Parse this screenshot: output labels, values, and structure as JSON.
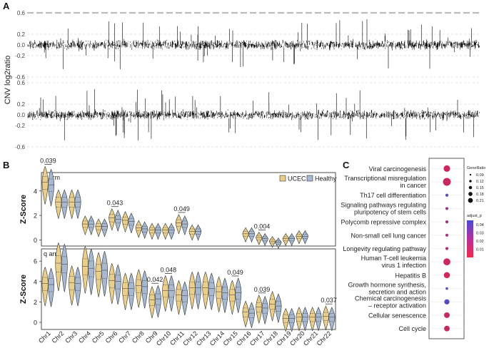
{
  "chart_data": [
    {
      "panel": "A",
      "type": "line",
      "description_type": "genome-wide CNV profile",
      "ylabel": "CNV log2ratio",
      "tracks": [
        {
          "name": "upper",
          "yticks": [
            -0.6,
            -0.2,
            0.2,
            0.6
          ],
          "ylim": [
            -0.6,
            0.6
          ]
        },
        {
          "name": "lower",
          "yticks": [
            -0.6,
            -0.2,
            0.2,
            0.6
          ],
          "ylim": [
            -0.6,
            0.6
          ]
        }
      ]
    },
    {
      "panel": "B",
      "type": "violin",
      "ylabel": "Z-Score",
      "legend": [
        "UCEC",
        "Healthy"
      ],
      "colors": {
        "UCEC": "#e9cf8b",
        "Healthy": "#a7b8cf"
      },
      "categories": [
        "Chr1",
        "Chr2",
        "Chr3",
        "Chr4",
        "Chr5",
        "Chr6",
        "Chr7",
        "Chr8",
        "Chr9",
        "Chr10",
        "Chr11",
        "Chr12",
        "Chr13",
        "Chr14",
        "Chr15",
        "Chr16",
        "Chr17",
        "Chr18",
        "Chr19",
        "Chr20",
        "Chr21",
        "Chr22"
      ],
      "subplots": [
        {
          "title": "p arm",
          "ylim": [
            -0.5,
            5.5
          ],
          "yticks": [
            0,
            2,
            4
          ],
          "medians": {
            "UCEC": [
              4.7,
              3.1,
              3.1,
              1.3,
              1.1,
              1.8,
              1.6,
              1.0,
              0.8,
              0.8,
              1.4,
              0.7,
              null,
              null,
              null,
              0.5,
              0.2,
              -0.1,
              0.1,
              0.3,
              null,
              null
            ],
            "Healthy": [
              4.5,
              3.1,
              3.1,
              1.3,
              1.1,
              1.7,
              1.5,
              0.9,
              0.8,
              0.8,
              1.3,
              0.7,
              null,
              null,
              null,
              0.5,
              0.1,
              -0.2,
              0.1,
              0.3,
              null,
              null
            ]
          },
          "pvalues": [
            {
              "chr": "Chr1",
              "p": "0.039"
            },
            {
              "chr": "Chr6",
              "p": "0.043"
            },
            {
              "chr": "Chr11",
              "p": "0.049"
            },
            {
              "chr": "Chr17",
              "p": "0.004"
            }
          ]
        },
        {
          "title": "q arm",
          "ylim": [
            -0.7,
            7.2
          ],
          "yticks": [
            0,
            2,
            4,
            6
          ],
          "medians": {
            "UCEC": [
              3.8,
              5.8,
              3.9,
              5.5,
              5.0,
              4.1,
              3.3,
              3.6,
              2.2,
              3.1,
              2.7,
              3.4,
              3.4,
              3.0,
              2.7,
              1.0,
              1.5,
              1.8,
              0.4,
              0.5,
              0.5,
              0.6
            ],
            "Healthy": [
              3.7,
              5.7,
              3.8,
              5.3,
              5.1,
              4.0,
              3.3,
              3.5,
              2.3,
              3.1,
              2.6,
              3.4,
              3.3,
              2.9,
              2.9,
              0.9,
              1.4,
              1.6,
              0.4,
              0.5,
              0.5,
              0.5
            ]
          },
          "pvalues": [
            {
              "chr": "Chr9",
              "p": "0.042"
            },
            {
              "chr": "Chr10",
              "p": "0.048"
            },
            {
              "chr": "Chr15",
              "p": "0.049"
            },
            {
              "chr": "Chr17",
              "p": "0.039"
            },
            {
              "chr": "Chr22",
              "p": "0.037"
            }
          ]
        }
      ]
    },
    {
      "panel": "C",
      "type": "scatter",
      "description_type": "enrichment dot plot",
      "terms": [
        {
          "lines": [
            "Viral carcinogenesis"
          ],
          "gene_ratio": 0.18,
          "p_adjust": 0.012
        },
        {
          "lines": [
            "Transcriptional misregulation",
            "in cancer"
          ],
          "gene_ratio": 0.21,
          "p_adjust": 0.013
        },
        {
          "lines": [
            "Th17 cell differentiation"
          ],
          "gene_ratio": 0.1,
          "p_adjust": 0.038
        },
        {
          "lines": [
            "Signaling pathways regulating",
            "pluripotency of stem cells"
          ],
          "gene_ratio": 0.1,
          "p_adjust": 0.025
        },
        {
          "lines": [
            "Polycomb repressive complex"
          ],
          "gene_ratio": 0.1,
          "p_adjust": 0.022
        },
        {
          "lines": [
            "Non-small cell lung cancer"
          ],
          "gene_ratio": 0.1,
          "p_adjust": 0.02
        },
        {
          "lines": [
            "Longevity regulating pathway"
          ],
          "gene_ratio": 0.1,
          "p_adjust": 0.018
        },
        {
          "lines": [
            "Human T-cell leukemia",
            "virus 1 infection"
          ],
          "gene_ratio": 0.19,
          "p_adjust": 0.012
        },
        {
          "lines": [
            "Hepatitis B"
          ],
          "gene_ratio": 0.17,
          "p_adjust": 0.011
        },
        {
          "lines": [
            "Growth hormone synthesis,",
            "secretion and action"
          ],
          "gene_ratio": 0.09,
          "p_adjust": 0.039
        },
        {
          "lines": [
            "Chemical carcinogenesis",
            "– receptor activation"
          ],
          "gene_ratio": 0.15,
          "p_adjust": 0.042
        },
        {
          "lines": [
            "Cellular senescence"
          ],
          "gene_ratio": 0.16,
          "p_adjust": 0.014
        },
        {
          "lines": [
            "Cell cycle"
          ],
          "gene_ratio": 0.16,
          "p_adjust": 0.013
        }
      ],
      "legend_size": {
        "title": "GeneRatio",
        "values": [
          "0.09",
          "0.12",
          "0.15",
          "0.18",
          "0.21"
        ]
      },
      "legend_color": {
        "title": "adjust_p",
        "values": [
          "0.04",
          "0.03",
          "0.02",
          "0.01"
        ]
      }
    }
  ],
  "panel_labels": [
    "A",
    "B",
    "C"
  ]
}
